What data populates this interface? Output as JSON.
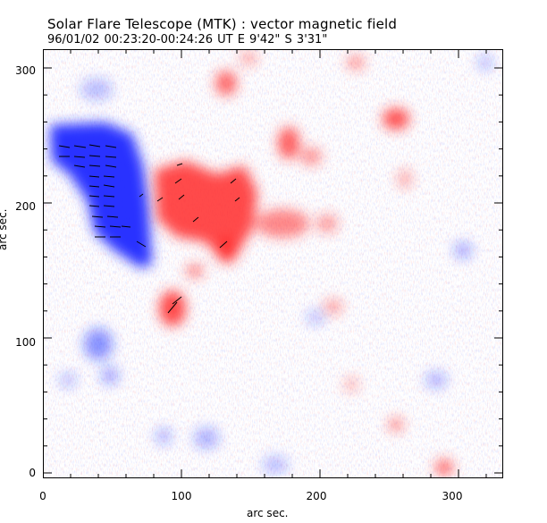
{
  "title": "Solar Flare Telescope (MTK) : vector magnetic field",
  "subtitle": "96/01/02   00:23:20-00:24:26 UT     E 9'42\"   S 3'31\"",
  "xlabel": "arc sec.",
  "ylabel": "arc sec.",
  "xticks": [
    "0",
    "100",
    "200",
    "300"
  ],
  "yticks": [
    "0",
    "100",
    "200",
    "300"
  ],
  "colors": {
    "positive": "#ff3030",
    "negative": "#2030ff",
    "vector": "#000000"
  }
}
